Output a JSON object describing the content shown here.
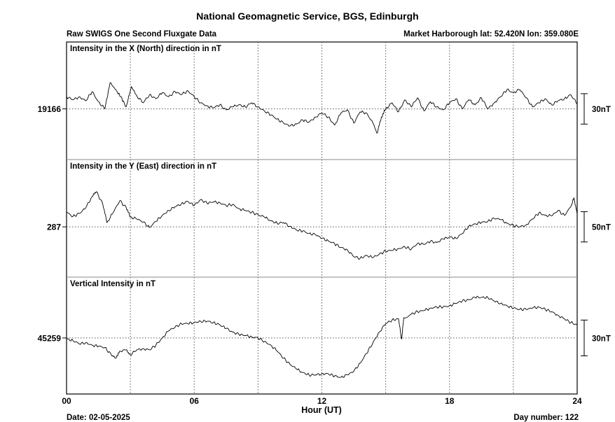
{
  "header": {
    "title": "National Geomagnetic Service, BGS, Edinburgh",
    "subtitle": "Raw SWIGS One Second Fluxgate Data",
    "station": "Market Harborough  lat: 52.420N lon: 359.080E"
  },
  "footer": {
    "date": "Date: 02-05-2025",
    "day_number": "Day number:  122"
  },
  "chart_data": {
    "type": "line",
    "xlabel": "Hour (UT)",
    "xlim": [
      0,
      24
    ],
    "x_ticks": [
      "00",
      "06",
      "12",
      "18",
      "24"
    ],
    "x_gridlines": [
      3,
      6,
      9,
      12,
      15,
      18,
      21
    ],
    "grid": true,
    "panels": [
      {
        "label": "Intensity in the X (North) direction in nT",
        "baseline_label": "19166",
        "baseline": 19166,
        "scale_label": "30nT",
        "scale_nT": 30,
        "ylim": [
          19116,
          19232
        ],
        "points": [
          [
            0.0,
            19178
          ],
          [
            0.3,
            19175
          ],
          [
            0.6,
            19178
          ],
          [
            0.9,
            19174
          ],
          [
            1.2,
            19183
          ],
          [
            1.5,
            19173
          ],
          [
            1.8,
            19166
          ],
          [
            2.05,
            19192
          ],
          [
            2.3,
            19185
          ],
          [
            2.55,
            19178
          ],
          [
            2.8,
            19168
          ],
          [
            3.05,
            19188
          ],
          [
            3.3,
            19179
          ],
          [
            3.6,
            19172
          ],
          [
            3.9,
            19180
          ],
          [
            4.2,
            19176
          ],
          [
            4.5,
            19182
          ],
          [
            4.8,
            19178
          ],
          [
            5.1,
            19183
          ],
          [
            5.4,
            19180
          ],
          [
            5.7,
            19184
          ],
          [
            6.0,
            19178
          ],
          [
            6.3,
            19172
          ],
          [
            6.6,
            19169
          ],
          [
            6.9,
            19167
          ],
          [
            7.2,
            19170
          ],
          [
            7.5,
            19165
          ],
          [
            7.8,
            19168
          ],
          [
            8.1,
            19170
          ],
          [
            8.4,
            19168
          ],
          [
            8.7,
            19172
          ],
          [
            9.0,
            19168
          ],
          [
            9.3,
            19164
          ],
          [
            9.6,
            19160
          ],
          [
            9.9,
            19156
          ],
          [
            10.2,
            19152
          ],
          [
            10.5,
            19149
          ],
          [
            10.8,
            19151
          ],
          [
            11.1,
            19155
          ],
          [
            11.4,
            19153
          ],
          [
            11.7,
            19158
          ],
          [
            12.0,
            19162
          ],
          [
            12.3,
            19158
          ],
          [
            12.6,
            19150
          ],
          [
            12.9,
            19162
          ],
          [
            13.2,
            19165
          ],
          [
            13.5,
            19152
          ],
          [
            13.8,
            19163
          ],
          [
            14.1,
            19162
          ],
          [
            14.4,
            19152
          ],
          [
            14.6,
            19142
          ],
          [
            14.8,
            19158
          ],
          [
            15.0,
            19166
          ],
          [
            15.3,
            19172
          ],
          [
            15.6,
            19163
          ],
          [
            15.9,
            19175
          ],
          [
            16.2,
            19168
          ],
          [
            16.5,
            19177
          ],
          [
            16.8,
            19164
          ],
          [
            17.1,
            19173
          ],
          [
            17.4,
            19168
          ],
          [
            17.7,
            19165
          ],
          [
            18.0,
            19172
          ],
          [
            18.3,
            19176
          ],
          [
            18.6,
            19166
          ],
          [
            18.9,
            19175
          ],
          [
            19.2,
            19170
          ],
          [
            19.5,
            19177
          ],
          [
            19.8,
            19166
          ],
          [
            20.1,
            19172
          ],
          [
            20.4,
            19178
          ],
          [
            20.7,
            19185
          ],
          [
            21.0,
            19182
          ],
          [
            21.3,
            19185
          ],
          [
            21.6,
            19177
          ],
          [
            21.9,
            19168
          ],
          [
            22.2,
            19172
          ],
          [
            22.5,
            19176
          ],
          [
            22.8,
            19170
          ],
          [
            23.1,
            19174
          ],
          [
            23.4,
            19176
          ],
          [
            23.7,
            19180
          ],
          [
            24.0,
            19171
          ]
        ]
      },
      {
        "label": "Intensity in the Y (East) direction in nT",
        "baseline_label": "287",
        "baseline": 287,
        "scale_label": "50nT",
        "scale_nT": 50,
        "ylim": [
          204,
          398
        ],
        "points": [
          [
            0.0,
            311
          ],
          [
            0.3,
            304
          ],
          [
            0.6,
            309
          ],
          [
            0.9,
            318
          ],
          [
            1.2,
            337
          ],
          [
            1.4,
            345
          ],
          [
            1.7,
            325
          ],
          [
            1.9,
            294
          ],
          [
            2.2,
            311
          ],
          [
            2.5,
            330
          ],
          [
            2.8,
            319
          ],
          [
            3.0,
            303
          ],
          [
            3.3,
            300
          ],
          [
            3.6,
            295
          ],
          [
            3.9,
            286
          ],
          [
            4.2,
            296
          ],
          [
            4.5,
            306
          ],
          [
            4.8,
            314
          ],
          [
            5.1,
            320
          ],
          [
            5.4,
            325
          ],
          [
            5.7,
            329
          ],
          [
            6.0,
            322
          ],
          [
            6.3,
            332
          ],
          [
            6.6,
            326
          ],
          [
            6.9,
            328
          ],
          [
            7.2,
            327
          ],
          [
            7.5,
            322
          ],
          [
            7.8,
            324
          ],
          [
            8.1,
            317
          ],
          [
            8.4,
            314
          ],
          [
            8.7,
            311
          ],
          [
            9.0,
            307
          ],
          [
            9.3,
            303
          ],
          [
            9.6,
            297
          ],
          [
            9.9,
            293
          ],
          [
            10.2,
            294
          ],
          [
            10.5,
            288
          ],
          [
            10.8,
            282
          ],
          [
            11.1,
            280
          ],
          [
            11.4,
            276
          ],
          [
            11.7,
            274
          ],
          [
            12.0,
            268
          ],
          [
            12.3,
            264
          ],
          [
            12.6,
            259
          ],
          [
            12.9,
            253
          ],
          [
            13.2,
            249
          ],
          [
            13.5,
            238
          ],
          [
            13.8,
            235
          ],
          [
            14.1,
            240
          ],
          [
            14.4,
            236
          ],
          [
            14.7,
            242
          ],
          [
            15.0,
            247
          ],
          [
            15.3,
            248
          ],
          [
            15.6,
            251
          ],
          [
            15.9,
            254
          ],
          [
            16.2,
            250
          ],
          [
            16.5,
            260
          ],
          [
            16.8,
            258
          ],
          [
            17.1,
            263
          ],
          [
            17.4,
            261
          ],
          [
            17.7,
            267
          ],
          [
            18.0,
            270
          ],
          [
            18.3,
            268
          ],
          [
            18.6,
            276
          ],
          [
            18.9,
            288
          ],
          [
            19.2,
            292
          ],
          [
            19.5,
            294
          ],
          [
            19.8,
            296
          ],
          [
            20.1,
            301
          ],
          [
            20.4,
            299
          ],
          [
            20.7,
            293
          ],
          [
            21.0,
            289
          ],
          [
            21.3,
            287
          ],
          [
            21.6,
            290
          ],
          [
            21.9,
            300
          ],
          [
            22.2,
            310
          ],
          [
            22.5,
            306
          ],
          [
            22.8,
            305
          ],
          [
            23.1,
            314
          ],
          [
            23.4,
            306
          ],
          [
            23.7,
            320
          ],
          [
            23.85,
            335
          ],
          [
            24.0,
            308
          ]
        ]
      },
      {
        "label": "Vertical Intensity in nT",
        "baseline_label": "45259",
        "baseline": 45259,
        "scale_label": "30nT",
        "scale_nT": 30,
        "ylim": [
          45212,
          45310
        ],
        "points": [
          [
            0.0,
            45258
          ],
          [
            0.3,
            45257
          ],
          [
            0.6,
            45254
          ],
          [
            0.9,
            45255
          ],
          [
            1.2,
            45253
          ],
          [
            1.5,
            45252
          ],
          [
            1.8,
            45251
          ],
          [
            2.1,
            45245
          ],
          [
            2.3,
            45242
          ],
          [
            2.5,
            45248
          ],
          [
            2.8,
            45249
          ],
          [
            3.0,
            45245
          ],
          [
            3.3,
            45249
          ],
          [
            3.6,
            45250
          ],
          [
            3.9,
            45249
          ],
          [
            4.2,
            45253
          ],
          [
            4.5,
            45259
          ],
          [
            4.8,
            45265
          ],
          [
            5.1,
            45268
          ],
          [
            5.4,
            45271
          ],
          [
            5.7,
            45271
          ],
          [
            6.0,
            45272
          ],
          [
            6.3,
            45273
          ],
          [
            6.6,
            45273
          ],
          [
            6.9,
            45272
          ],
          [
            7.2,
            45270
          ],
          [
            7.5,
            45267
          ],
          [
            7.8,
            45264
          ],
          [
            8.1,
            45262
          ],
          [
            8.4,
            45261
          ],
          [
            8.7,
            45260
          ],
          [
            9.0,
            45259
          ],
          [
            9.3,
            45256
          ],
          [
            9.6,
            45253
          ],
          [
            9.9,
            45248
          ],
          [
            10.2,
            45242
          ],
          [
            10.5,
            45237
          ],
          [
            10.8,
            45233
          ],
          [
            11.1,
            45230
          ],
          [
            11.4,
            45228
          ],
          [
            11.7,
            45228
          ],
          [
            12.0,
            45229
          ],
          [
            12.3,
            45229
          ],
          [
            12.6,
            45227
          ],
          [
            12.9,
            45226
          ],
          [
            13.2,
            45228
          ],
          [
            13.5,
            45231
          ],
          [
            13.8,
            45238
          ],
          [
            14.1,
            45246
          ],
          [
            14.4,
            45255
          ],
          [
            14.7,
            45264
          ],
          [
            15.0,
            45271
          ],
          [
            15.3,
            45274
          ],
          [
            15.6,
            45275
          ],
          [
            15.75,
            45258
          ],
          [
            15.85,
            45276
          ],
          [
            16.2,
            45279
          ],
          [
            16.5,
            45281
          ],
          [
            16.8,
            45282
          ],
          [
            17.1,
            45284
          ],
          [
            17.4,
            45285
          ],
          [
            17.7,
            45285
          ],
          [
            18.0,
            45286
          ],
          [
            18.3,
            45288
          ],
          [
            18.6,
            45290
          ],
          [
            18.9,
            45291
          ],
          [
            19.2,
            45293
          ],
          [
            19.5,
            45293
          ],
          [
            19.8,
            45293
          ],
          [
            20.1,
            45290
          ],
          [
            20.4,
            45288
          ],
          [
            20.7,
            45286
          ],
          [
            21.0,
            45284
          ],
          [
            21.3,
            45283
          ],
          [
            21.6,
            45283
          ],
          [
            21.9,
            45284
          ],
          [
            22.2,
            45285
          ],
          [
            22.5,
            45283
          ],
          [
            22.8,
            45281
          ],
          [
            23.1,
            45278
          ],
          [
            23.4,
            45275
          ],
          [
            23.7,
            45272
          ],
          [
            24.0,
            45270
          ]
        ]
      }
    ]
  }
}
